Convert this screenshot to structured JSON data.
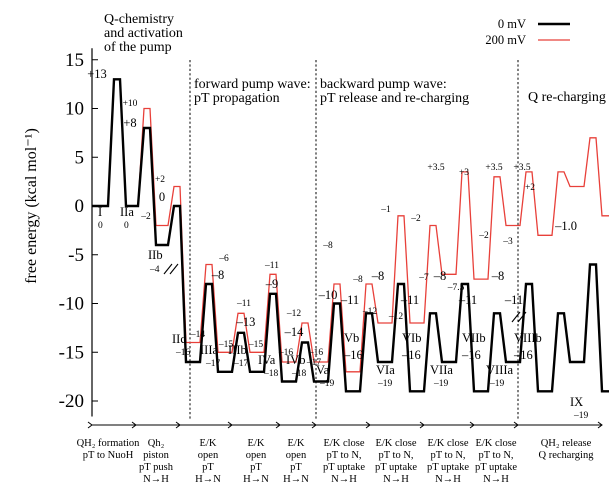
{
  "chart_data": {
    "type": "line",
    "ylabel": "free energy (kcal mol⁻¹)",
    "ylim": [
      -22,
      17
    ],
    "y_ticks": [
      -20,
      -15,
      -10,
      -5,
      0,
      5,
      10,
      15
    ],
    "legend": {
      "position": "top-right",
      "entries": [
        {
          "name": "0 mV",
          "color": "#000000"
        },
        {
          "name": "200 mV",
          "color": "#e8403a"
        }
      ]
    },
    "phase_headers": [
      "Q-chemistry\nand activation\nof the pump",
      "forward pump wave:\npT propagation",
      "backward pump wave:\npT release and re-charging",
      "Q re-charging"
    ],
    "steps": [
      "QH₂ formation\npT to NuoH",
      "Qh₂\npiston\npT push\nN→H",
      "E/K\nopen\npT\nH→N",
      "E/K\nopen\npT\nH→N",
      "E/K\nopen\npT\nH→N",
      "E/K close\npT to N,\npT uptake\nN→H",
      "E/K close\npT to N,\npT uptake\nN→H",
      "E/K close\npT to N,\npT uptake\nN→H",
      "E/K close\npT to N,\npT uptake\nN→H",
      "QH₂ release\nQ recharging"
    ],
    "series": [
      {
        "name": "0 mV",
        "color": "#000000",
        "values": [
          0,
          0,
          13,
          13,
          0,
          0,
          8,
          8,
          -4,
          -4,
          0,
          0,
          -16,
          -16,
          -8,
          -8,
          -17,
          -17,
          -13,
          -13,
          -17,
          -17,
          -9,
          -9,
          -18,
          -18,
          -14,
          -14,
          -18,
          -18,
          -10,
          -10,
          -19,
          -19,
          -11,
          -11,
          -16,
          -16,
          -8,
          -8,
          -19,
          -19,
          -11,
          -11,
          -16,
          -16,
          -8,
          -8,
          -19,
          -19,
          -11,
          -11,
          -16,
          -16,
          -8,
          -8,
          -19,
          -19,
          -11,
          -11,
          -16,
          -16,
          -6,
          -6,
          -19,
          -19
        ]
      },
      {
        "name": "200 mV",
        "color": "#e8403a",
        "values": [
          0,
          0,
          13,
          13,
          0,
          0,
          10,
          10,
          -2,
          -2,
          2,
          2,
          -14,
          -14,
          -6,
          -6,
          -15,
          -15,
          -11,
          -11,
          -15,
          -15,
          -7,
          -7,
          -16,
          -16,
          -12,
          -12,
          -16,
          -16,
          -8,
          -8,
          -17,
          -17,
          -8,
          -8,
          -12,
          -12,
          -1,
          -1,
          -12,
          -12,
          -2,
          -2,
          -7,
          -7,
          3.5,
          3.5,
          -7.5,
          -7.5,
          3,
          3,
          -2,
          -2,
          3.5,
          3.5,
          -3,
          -3,
          3.5,
          3.5,
          2,
          2,
          7,
          7,
          -1,
          -1
        ]
      }
    ],
    "state_labels": [
      {
        "text": "I"
      },
      {
        "text": "0"
      },
      {
        "text": "IIa"
      },
      {
        "text": "0"
      },
      {
        "text": "IIb"
      },
      {
        "text": "–4"
      },
      {
        "text": "IIc"
      },
      {
        "text": "–16"
      },
      {
        "text": "IIIa"
      },
      {
        "text": "–17"
      },
      {
        "text": "IIIb"
      },
      {
        "text": "–17"
      },
      {
        "text": "IVa"
      },
      {
        "text": "–18"
      },
      {
        "text": "IVb"
      },
      {
        "text": "–18"
      },
      {
        "text": "Va"
      },
      {
        "text": "–19"
      },
      {
        "text": "Vb"
      },
      {
        "text": "–16"
      },
      {
        "text": "VIa"
      },
      {
        "text": "–19"
      },
      {
        "text": "VIb"
      },
      {
        "text": "–16"
      },
      {
        "text": "VIIa"
      },
      {
        "text": "–19"
      },
      {
        "text": "VIIb"
      },
      {
        "text": "–16"
      },
      {
        "text": "VIIIa"
      },
      {
        "text": "–19"
      },
      {
        "text": "VIIIb"
      },
      {
        "text": "–16"
      },
      {
        "text": "IX"
      },
      {
        "text": "–19"
      }
    ],
    "value_labels": [
      {
        "text": "+13"
      },
      {
        "text": "+10"
      },
      {
        "text": "+8"
      },
      {
        "text": "–2"
      },
      {
        "text": "+2"
      },
      {
        "text": "0"
      },
      {
        "text": "–6"
      },
      {
        "text": "–8"
      },
      {
        "text": "–14"
      },
      {
        "text": "–11"
      },
      {
        "text": "–13"
      },
      {
        "text": "–15"
      },
      {
        "text": "–15"
      },
      {
        "text": "–11"
      },
      {
        "text": "–9"
      },
      {
        "text": "–12"
      },
      {
        "text": "–14"
      },
      {
        "text": "–16"
      },
      {
        "text": "–16"
      },
      {
        "text": "–8"
      },
      {
        "text": "–10"
      },
      {
        "text": "–17"
      },
      {
        "text": "–8"
      },
      {
        "text": "–11"
      },
      {
        "text": "–12"
      },
      {
        "text": "–1"
      },
      {
        "text": "–8"
      },
      {
        "text": "–12"
      },
      {
        "text": "–2"
      },
      {
        "text": "–11"
      },
      {
        "text": "–7"
      },
      {
        "text": "+3.5"
      },
      {
        "text": "–8"
      },
      {
        "text": "–7.5"
      },
      {
        "text": "+3"
      },
      {
        "text": "–11"
      },
      {
        "text": "–2"
      },
      {
        "text": "+3.5"
      },
      {
        "text": "–8"
      },
      {
        "text": "–3"
      },
      {
        "text": "+3.5"
      },
      {
        "text": "–11"
      },
      {
        "text": "+2"
      },
      {
        "text": "–1.0"
      }
    ]
  }
}
